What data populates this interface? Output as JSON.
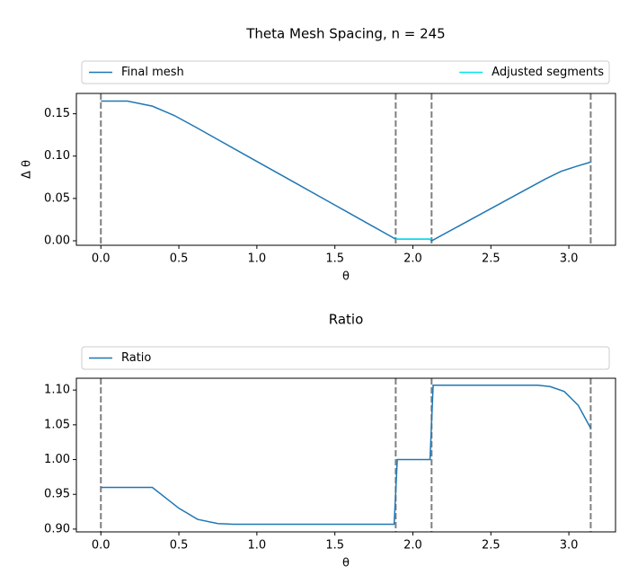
{
  "chart_data": [
    {
      "type": "line",
      "title": "Theta Mesh Spacing, n = 245",
      "xlabel": "θ",
      "ylabel": "Δ θ",
      "xlim": [
        -0.157,
        3.299
      ],
      "ylim": [
        -0.0053,
        0.174
      ],
      "xticks": [
        {
          "value": 0,
          "label": "0.0"
        },
        0.5,
        {
          "value": 1,
          "label": "1.0"
        },
        1.5,
        {
          "value": 2,
          "label": "2.0"
        },
        2.5,
        {
          "value": 3,
          "label": "3.0"
        }
      ],
      "yticks": [
        {
          "value": 0,
          "label": "0.00"
        },
        {
          "value": 0.05,
          "label": "0.05"
        },
        {
          "value": 0.1,
          "label": "0.10"
        },
        {
          "value": 0.15,
          "label": "0.15"
        }
      ],
      "vlines": [
        0,
        1.89,
        2.12,
        3.14
      ],
      "vline_color": "#808080",
      "legend": "above",
      "series": [
        {
          "name": "Final mesh",
          "color": "#1f77b4",
          "x": [
            0,
            0.17,
            0.33,
            0.47,
            0.6,
            0.75,
            1.0,
            1.25,
            1.5,
            1.75,
            1.89,
            2.11,
            2.12,
            2.3,
            2.5,
            2.7,
            2.85,
            2.95,
            3.05,
            3.14
          ],
          "values": [
            0.165,
            0.165,
            0.159,
            0.148,
            0.135,
            0.1195,
            0.0937,
            0.068,
            0.0422,
            0.0164,
            0.002,
            0.002,
            0.0,
            0.018,
            0.038,
            0.058,
            0.073,
            0.082,
            0.088,
            0.093
          ]
        },
        {
          "name": "Adjusted segments",
          "color": "#00e5ee",
          "x": [
            1.89,
            2.12
          ],
          "values": [
            0.002,
            0.002
          ]
        }
      ]
    },
    {
      "type": "line",
      "title": "Ratio",
      "xlabel": "θ",
      "xlim": [
        -0.157,
        3.299
      ],
      "ylim": [
        0.896,
        1.117
      ],
      "xticks": [
        {
          "value": 0,
          "label": "0.0"
        },
        0.5,
        {
          "value": 1,
          "label": "1.0"
        },
        1.5,
        {
          "value": 2,
          "label": "2.0"
        },
        2.5,
        {
          "value": 3,
          "label": "3.0"
        }
      ],
      "yticks": [
        {
          "value": 0.9,
          "label": "0.90"
        },
        0.95,
        {
          "value": 1,
          "label": "1.00"
        },
        1.05,
        {
          "value": 1.1,
          "label": "1.10"
        }
      ],
      "vlines": [
        0,
        1.89,
        2.12,
        3.14
      ],
      "vline_color": "#808080",
      "legend": "above",
      "series": [
        {
          "name": "Ratio",
          "color": "#1f77b4",
          "x": [
            0,
            0.33,
            0.5,
            0.62,
            0.75,
            0.85,
            1.88,
            1.9,
            2.11,
            2.13,
            2.8,
            2.88,
            2.97,
            3.06,
            3.14
          ],
          "values": [
            0.96,
            0.96,
            0.93,
            0.914,
            0.908,
            0.907,
            0.907,
            1.0,
            1.0,
            1.107,
            1.107,
            1.105,
            1.098,
            1.078,
            1.045
          ]
        }
      ]
    }
  ]
}
